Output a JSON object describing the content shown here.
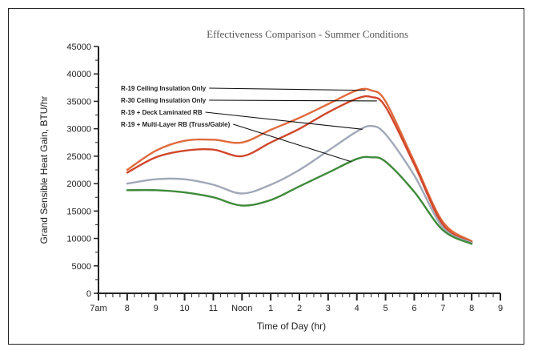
{
  "chart_data": {
    "type": "line",
    "title": "Effectiveness Comparison - Summer Conditions",
    "xlabel": "Time of Day (hr)",
    "ylabel": "Grand Sensible Heat Gain, BTU/hr",
    "x_tick_labels": [
      "7am",
      "8",
      "9",
      "10",
      "11",
      "Noon",
      "1",
      "2",
      "3",
      "4",
      "5",
      "6",
      "7",
      "8",
      "9"
    ],
    "xlim": [
      7,
      21
    ],
    "ylim": [
      0,
      45000
    ],
    "y_ticks": [
      0,
      5000,
      10000,
      15000,
      20000,
      25000,
      30000,
      35000,
      40000,
      45000
    ],
    "grid": false,
    "legend_position": "upper-left (labels with leader lines to each curve)",
    "series": [
      {
        "name": "R-19 Ceiling Insulation Only",
        "color": "#e06a3c",
        "x": [
          8,
          9,
          10,
          11,
          12,
          13,
          14,
          15,
          16,
          16.5,
          17,
          18,
          19,
          20
        ],
        "y": [
          22500,
          26000,
          27800,
          28000,
          27500,
          29800,
          32000,
          34500,
          37000,
          37000,
          35000,
          24000,
          13000,
          9500
        ]
      },
      {
        "name": "R-30 Ceiling Insulation Only",
        "color": "#d0462a",
        "x": [
          8,
          9,
          10,
          11,
          12,
          13,
          14,
          15,
          16,
          16.5,
          17,
          18,
          19,
          20
        ],
        "y": [
          22000,
          24800,
          26000,
          26200,
          25000,
          27500,
          30000,
          33000,
          35500,
          35800,
          34000,
          23500,
          12500,
          9300
        ]
      },
      {
        "name": "R-19 + Deck Laminated RB",
        "color": "#a0a8b8",
        "x": [
          8,
          9,
          10,
          11,
          12,
          13,
          14,
          15,
          16,
          16.5,
          17,
          18,
          19,
          20
        ],
        "y": [
          20000,
          20800,
          20800,
          19800,
          18200,
          19800,
          22500,
          26000,
          29500,
          30500,
          29000,
          21500,
          12000,
          9200
        ]
      },
      {
        "name": "R-19 + Multi-Layer RB (Truss/Gable)",
        "color": "#3e8a3a",
        "x": [
          8,
          9,
          10,
          11,
          12,
          13,
          14,
          15,
          16,
          16.5,
          17,
          18,
          19,
          20
        ],
        "y": [
          18800,
          18800,
          18400,
          17500,
          16000,
          17000,
          19500,
          22000,
          24500,
          24800,
          24000,
          18500,
          11500,
          9000
        ]
      }
    ],
    "leader_targets_x": [
      16.3,
      16.7,
      16.2,
      15.8
    ]
  }
}
